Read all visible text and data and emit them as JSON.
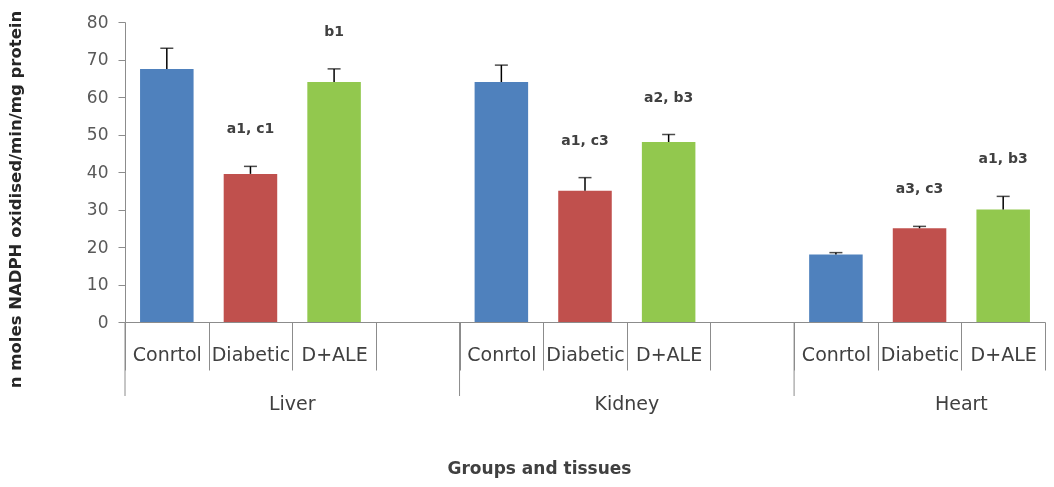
{
  "chart_data": {
    "type": "bar",
    "xlabel": "Groups and tissues",
    "ylabel": "n moles NADPH oxidised/min/mg protein",
    "categories": [
      "Liver",
      "Kidney",
      "Heart"
    ],
    "series": [
      {
        "name": "Conrtol",
        "color": "#4f81bd",
        "values": [
          67.5,
          64,
          18
        ],
        "errors": [
          [
            67.5,
            73
          ],
          [
            64,
            68.5
          ],
          [
            18,
            18.5
          ]
        ]
      },
      {
        "name": "Diabetic",
        "color": "#c0504d",
        "values": [
          39.5,
          35,
          25
        ],
        "errors": [
          [
            39.5,
            41.5
          ],
          [
            35,
            38.5
          ],
          [
            25,
            25.5
          ]
        ],
        "value_labels": [
          "a1, c1",
          "a1, c3",
          "a3, c3"
        ]
      },
      {
        "name": "D+ALE",
        "color": "#92c84e",
        "values": [
          64,
          48,
          30
        ],
        "errors": [
          [
            64,
            67.5
          ],
          [
            48,
            50
          ],
          [
            30,
            33.5
          ]
        ],
        "value_labels": [
          "b1",
          "a2, b3",
          "a1, b3"
        ]
      }
    ],
    "ylim": [
      0,
      80
    ],
    "yticks": [
      0,
      10,
      20,
      30,
      40,
      50,
      60,
      70,
      80
    ],
    "grid": false,
    "legend": false
  }
}
